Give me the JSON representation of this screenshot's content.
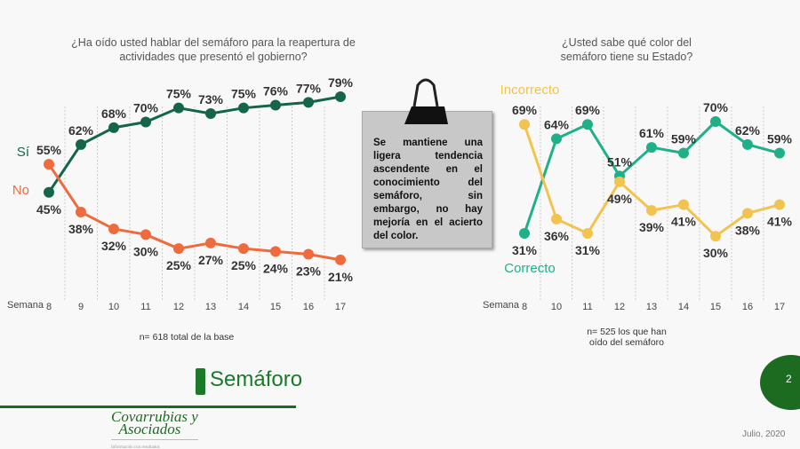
{
  "chart_data": [
    {
      "type": "line",
      "title": "¿Ha oído usted hablar del semáforo para la reapertura de actividades que presentó el gobierno?",
      "xlabel": "Semana",
      "categories": [
        "8",
        "9",
        "10",
        "11",
        "12",
        "13",
        "14",
        "15",
        "16",
        "17"
      ],
      "series": [
        {
          "name": "Sí",
          "values": [
            45,
            62,
            68,
            70,
            75,
            73,
            75,
            76,
            77,
            79
          ],
          "color": "#14654a"
        },
        {
          "name": "No",
          "values": [
            55,
            38,
            32,
            30,
            25,
            27,
            25,
            24,
            23,
            21
          ],
          "color": "#ef6a3c"
        }
      ],
      "note": "n= 618 total de la base"
    },
    {
      "type": "line",
      "title": "¿Usted sabe qué color del semáforo tiene su Estado?",
      "xlabel": "Semana",
      "categories": [
        "8",
        "10",
        "11",
        "12",
        "13",
        "14",
        "15",
        "16",
        "17"
      ],
      "series": [
        {
          "name": "Correcto",
          "values": [
            31,
            64,
            69,
            51,
            61,
            59,
            70,
            62,
            59
          ],
          "color": "#1fb08a"
        },
        {
          "name": "Incorrecto",
          "values": [
            69,
            36,
            31,
            49,
            39,
            41,
            30,
            38,
            41
          ],
          "color": "#f2c34f"
        }
      ],
      "note": "n= 525 los que han oído del semáforo"
    }
  ],
  "callout": "Se mantiene una ligera tendencia ascendente en el conocimiento del semáforo, sin embargo, no hay mejoría en el acierto del color.",
  "brand": "Semáforo",
  "page_number": "2",
  "date": "Julio, 2020",
  "logo": {
    "line1": "Covarrubias y",
    "line2": "Asociados",
    "tagline": "Información con resultados"
  }
}
